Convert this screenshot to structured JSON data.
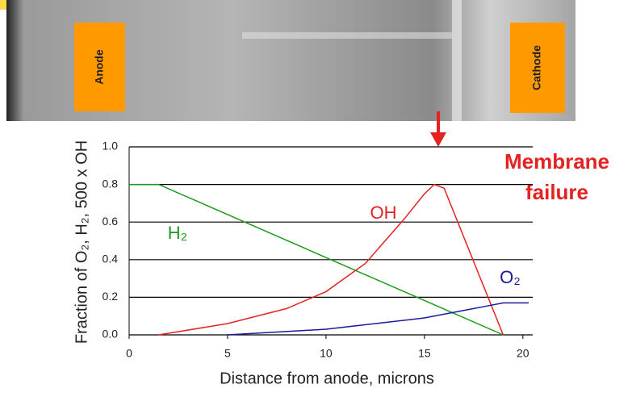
{
  "header": {
    "image_labels": [
      "Anode",
      "Cathode"
    ]
  },
  "chart_data": {
    "type": "line",
    "x_label": "Distance from anode, microns",
    "y_label": "Fraction of O₂, H₂, 500 x OH",
    "annotation": [
      "Membrane",
      "failure"
    ],
    "xlim": [
      0,
      20.5
    ],
    "xticks": [
      0,
      5,
      10,
      15,
      20
    ],
    "ylim": [
      0,
      1.0
    ],
    "yticks": [
      {
        "value": 0,
        "label": "0.0"
      },
      {
        "value": 0.2,
        "label": "0.2"
      },
      {
        "value": 0.4,
        "label": "0.4"
      },
      {
        "value": 0.6,
        "label": "0.6"
      },
      {
        "value": 0.8,
        "label": "0.8"
      },
      {
        "value": 1.0,
        "label": "1.0"
      }
    ],
    "grid": true,
    "series": [
      {
        "name": "H₂",
        "color": "#1a9a1a",
        "x": [
          0,
          1.5,
          19
        ],
        "values": [
          0.8,
          0.8,
          0
        ]
      },
      {
        "name": "OH",
        "color": "#e52222",
        "x": [
          1.5,
          5,
          8,
          10,
          12,
          13,
          14,
          15,
          15.5,
          16,
          19
        ],
        "values": [
          0,
          0.06,
          0.14,
          0.23,
          0.38,
          0.5,
          0.62,
          0.75,
          0.8,
          0.78,
          0
        ]
      },
      {
        "name": "O₂",
        "color": "#1a1a9a",
        "x": [
          5,
          10,
          15,
          18,
          19,
          20.3
        ],
        "values": [
          0,
          0.03,
          0.09,
          0.15,
          0.17,
          0.17
        ]
      }
    ]
  }
}
